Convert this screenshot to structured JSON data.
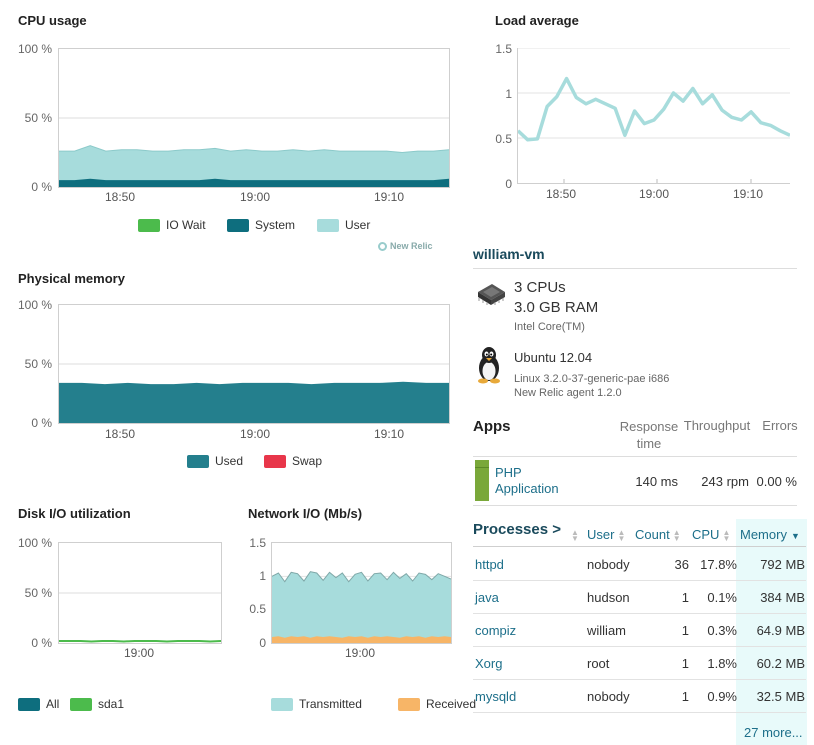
{
  "cpu": {
    "title": "CPU usage",
    "yticks": [
      "100 %",
      "50 %",
      "0 %"
    ],
    "xticks": [
      "18:50",
      "19:00",
      "19:10"
    ],
    "legend": [
      "IO Wait",
      "System",
      "User"
    ],
    "colors": {
      "io_wait": "#4cbb4c",
      "system": "#0e6e7e",
      "user": "#a7dcdc"
    },
    "user_total": [
      26,
      26,
      30,
      26,
      27,
      27,
      26,
      26,
      27,
      27,
      28,
      26,
      27,
      26,
      26,
      27,
      26,
      27,
      26,
      26,
      26,
      26,
      25,
      26,
      26,
      27
    ],
    "system": [
      5,
      5,
      6,
      5,
      5,
      5,
      5,
      5,
      5,
      5,
      6,
      5,
      5,
      5,
      5,
      5,
      5,
      5,
      5,
      5,
      5,
      5,
      5,
      5,
      5,
      6
    ]
  },
  "watermark": "New Relic",
  "load": {
    "title": "Load average",
    "yticks": [
      "1.5",
      "1",
      "0.5",
      "0"
    ],
    "xticks": [
      "18:50",
      "19:00",
      "19:10"
    ],
    "values": [
      0.58,
      0.48,
      0.49,
      0.85,
      0.96,
      1.16,
      0.95,
      0.88,
      0.93,
      0.88,
      0.83,
      0.53,
      0.8,
      0.66,
      0.7,
      0.82,
      1.0,
      0.91,
      1.05,
      0.88,
      0.98,
      0.81,
      0.73,
      0.7,
      0.79,
      0.67,
      0.64,
      0.58,
      0.53
    ]
  },
  "memory": {
    "title": "Physical memory",
    "yticks": [
      "100 %",
      "50 %",
      "0 %"
    ],
    "xticks": [
      "18:50",
      "19:00",
      "19:10"
    ],
    "legend": [
      "Used",
      "Swap"
    ],
    "colors": {
      "used": "#247f8d",
      "swap": "#e8364a"
    },
    "used": [
      34,
      34,
      33,
      34,
      33,
      33,
      34,
      33,
      34,
      34,
      34,
      33,
      34,
      34,
      34,
      35,
      34,
      34
    ]
  },
  "disk": {
    "title": "Disk I/O utilization",
    "yticks": [
      "100 %",
      "50 %",
      "0 %"
    ],
    "xticks": [
      "19:00"
    ],
    "legend": [
      "All",
      "sda1"
    ],
    "colors": {
      "all": "#0e6e7e",
      "sda1": "#4cbb4c"
    },
    "values": [
      2,
      2,
      2,
      1.5,
      2,
      2,
      1.5,
      2,
      2,
      2,
      1.5,
      2,
      2,
      2,
      1.5,
      2
    ]
  },
  "network": {
    "title": "Network I/O (Mb/s)",
    "yticks": [
      "1.5",
      "1",
      "0.5",
      "0"
    ],
    "xticks": [
      "19:00"
    ],
    "legend": [
      "Transmitted",
      "Received"
    ],
    "colors": {
      "transmitted": "#a7dcdc",
      "received": "#f7b567"
    },
    "transmitted": [
      1.0,
      1.05,
      0.92,
      1.06,
      1.04,
      0.93,
      1.07,
      1.05,
      0.94,
      1.06,
      0.98,
      1.05,
      0.92,
      1.03,
      1.06,
      0.93,
      1.04,
      1.05,
      0.95,
      1.06,
      0.97,
      1.04,
      0.93,
      1.05,
      1.03,
      0.95,
      1.04,
      1.0,
      0.96
    ],
    "received": [
      0.09,
      0.1,
      0.08,
      0.1,
      0.09,
      0.1,
      0.08,
      0.1,
      0.09,
      0.1,
      0.09,
      0.08,
      0.1,
      0.09,
      0.1,
      0.08,
      0.1,
      0.09,
      0.1,
      0.09,
      0.08,
      0.1,
      0.09,
      0.1,
      0.08,
      0.1,
      0.09,
      0.1,
      0.09
    ]
  },
  "host": {
    "name": "william-vm",
    "cpus": "3 CPUs",
    "ram": "3.0 GB RAM",
    "cpu_model": "Intel Core(TM)",
    "os": "Ubuntu 12.04",
    "kernel": "Linux 3.2.0-37-generic-pae i686",
    "agent": "New Relic agent 1.2.0"
  },
  "apps": {
    "title": "Apps",
    "headers": {
      "response": "Response time",
      "throughput": "Throughput",
      "errors": "Errors"
    },
    "rows": [
      {
        "name": "PHP Application",
        "response": "140 ms",
        "throughput": "243 rpm",
        "errors": "0.00 %",
        "color": "#7aa83a"
      }
    ]
  },
  "processes": {
    "title": "Processes >",
    "headers": {
      "user": "User",
      "count": "Count",
      "cpu": "CPU",
      "memory": "Memory"
    },
    "rows": [
      {
        "name": "httpd",
        "user": "nobody",
        "count": "36",
        "cpu": "17.8%",
        "memory": "792 MB"
      },
      {
        "name": "java",
        "user": "hudson",
        "count": "1",
        "cpu": "0.1%",
        "memory": "384 MB"
      },
      {
        "name": "compiz",
        "user": "william",
        "count": "1",
        "cpu": "0.3%",
        "memory": "64.9 MB"
      },
      {
        "name": "Xorg",
        "user": "root",
        "count": "1",
        "cpu": "1.8%",
        "memory": "60.2 MB"
      },
      {
        "name": "mysqld",
        "user": "nobody",
        "count": "1",
        "cpu": "0.9%",
        "memory": "32.5 MB"
      }
    ],
    "more": "27 more..."
  }
}
